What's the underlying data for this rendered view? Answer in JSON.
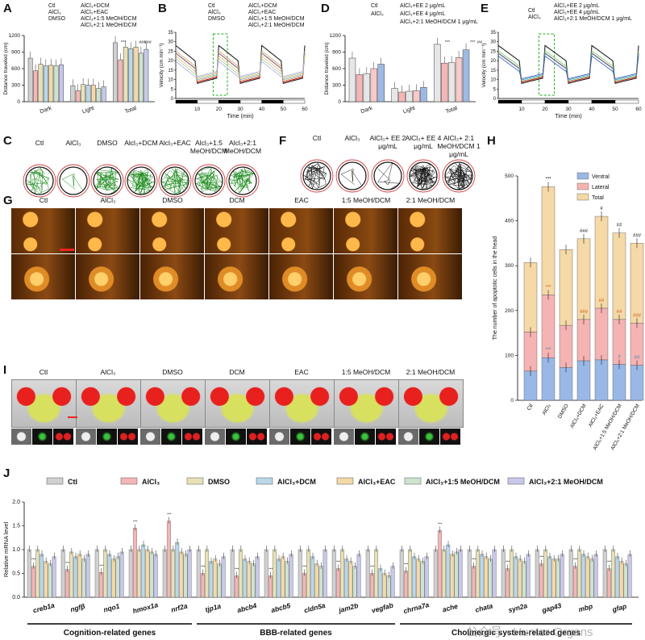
{
  "panel_letters": {
    "A": "A",
    "B": "B",
    "C": "C",
    "D": "D",
    "E": "E",
    "F": "F",
    "G": "G",
    "H": "H",
    "I": "I",
    "J": "J"
  },
  "colors": {
    "ctl": "#d0d0d0",
    "alcl3": "#f4b6b6",
    "dmso": "#e8e1b8",
    "dcm": "#b9d8e8",
    "eac": "#f4d9a8",
    "m15": "#cde3d0",
    "m21": "#c8c8ea",
    "ee2": "#e6e6e6",
    "ee4": "#f7c9c9",
    "mix": "#9db9e4",
    "ventral": "#9ab8e6",
    "lateral": "#f5b3b3",
    "total": "#f5d9a6"
  },
  "panel_A": {
    "legend": [
      "Ctl",
      "AlCl₃",
      "DMSO",
      "AlCl₃+DCM",
      "AlCl₃+EAC",
      "AlCl₃+1:5 MeOH/DCM",
      "AlCl₃+2:1 MeOH/DCM"
    ],
    "ylabel": "Distance traveled (cm)",
    "yticks": [
      "0",
      "300",
      "600",
      "900",
      "1200"
    ],
    "groups": [
      "Dark",
      "Light",
      "Total"
    ],
    "annotations": [
      "***",
      "###",
      "###"
    ]
  },
  "chart_data": [
    {
      "type": "bar",
      "id": "A",
      "title": "",
      "ylabel": "Distance traveled (cm)",
      "ylim": [
        0,
        1200
      ],
      "categories": [
        "Dark",
        "Light",
        "Total"
      ],
      "series": [
        {
          "name": "Ctl",
          "values": [
            790,
            290,
            1070
          ]
        },
        {
          "name": "AlCl₃",
          "values": [
            560,
            200,
            760
          ]
        },
        {
          "name": "DMSO",
          "values": [
            680,
            310,
            990
          ]
        },
        {
          "name": "AlCl₃+DCM",
          "values": [
            650,
            300,
            960
          ]
        },
        {
          "name": "AlCl₃+EAC",
          "values": [
            660,
            300,
            990
          ]
        },
        {
          "name": "AlCl₃+1:5 MeOH/DCM",
          "values": [
            650,
            240,
            880
          ]
        },
        {
          "name": "AlCl₃+2:1 MeOH/DCM",
          "values": [
            670,
            270,
            950
          ]
        }
      ]
    },
    {
      "type": "line",
      "id": "B",
      "xlabel": "Time (min)",
      "ylabel": "Velocity (cm min⁻¹)",
      "xlim": [
        0,
        60
      ],
      "ylim": [
        0,
        35
      ]
    },
    {
      "type": "bar",
      "id": "D",
      "ylabel": "Distance traveled (cm)",
      "ylim": [
        0,
        1200
      ],
      "categories": [
        "Dark",
        "Light",
        "Total"
      ],
      "series": [
        {
          "name": "Ctl",
          "values": [
            790,
            240,
            1040
          ]
        },
        {
          "name": "AlCl₃",
          "values": [
            490,
            175,
            700
          ]
        },
        {
          "name": "AlCl₃+EE 2 μg/mL",
          "values": [
            510,
            190,
            710
          ]
        },
        {
          "name": "AlCl₃+EE 4 μg/mL",
          "values": [
            600,
            200,
            800
          ]
        },
        {
          "name": "AlCl₃+2:1 MeOH/DCM 1 μg/mL",
          "values": [
            680,
            260,
            940
          ]
        }
      ]
    },
    {
      "type": "line",
      "id": "E",
      "xlabel": "Time (min)",
      "ylabel": "Velocity (cm min⁻¹)",
      "xlim": [
        0,
        60
      ],
      "ylim": [
        0,
        35
      ]
    },
    {
      "type": "bar",
      "id": "H",
      "ylabel": "The number of apoptotic cells in the head",
      "ylim": [
        0,
        500
      ],
      "categories": [
        "Ctl",
        "AlCl₃",
        "DMSO",
        "AlCl₃+DCM",
        "AlCl₃+EAC",
        "AlCl₃+1:5 MeOH/DCM",
        "AlCl₃+2:1 MeOH/DCM"
      ],
      "series": [
        {
          "name": "Ventral",
          "values": [
            65,
            95,
            73,
            88,
            90,
            80,
            78
          ]
        },
        {
          "name": "Lateral",
          "values": [
            152,
            235,
            167,
            180,
            205,
            180,
            172
          ]
        },
        {
          "name": "Total",
          "values": [
            307,
            476,
            336,
            360,
            410,
            373,
            350
          ]
        }
      ]
    },
    {
      "type": "bar",
      "id": "J",
      "ylabel": "Relative mRNA level",
      "ylim": [
        0,
        2.0
      ],
      "categories": [
        "creb1a",
        "ngfβ",
        "nqo1",
        "hmox1a",
        "nrf2a",
        "tjp1a",
        "abcb4",
        "abcb5",
        "cldn5a",
        "jam2b",
        "vegfab",
        "chrna7a",
        "ache",
        "chata",
        "syn2a",
        "gap43",
        "mbp",
        "gfap"
      ],
      "series": [
        {
          "name": "Ctl",
          "values": [
            1,
            1,
            1,
            1,
            1,
            1,
            1,
            1,
            1,
            1,
            1,
            1,
            1,
            1,
            1,
            1,
            1,
            1
          ]
        },
        {
          "name": "AlCl₃",
          "values": [
            0.65,
            0.58,
            0.52,
            1.45,
            1.6,
            0.5,
            0.45,
            0.45,
            0.5,
            0.6,
            0.5,
            0.55,
            1.4,
            0.65,
            0.6,
            0.7,
            0.65,
            0.6
          ]
        },
        {
          "name": "DMSO",
          "values": [
            1,
            0.95,
            1,
            1,
            1,
            1,
            1,
            1,
            1,
            1,
            1,
            1,
            1,
            1,
            1,
            1,
            1,
            1
          ]
        },
        {
          "name": "AlCl₃+DCM",
          "values": [
            0.9,
            0.85,
            0.9,
            1.1,
            1.15,
            0.75,
            0.8,
            0.8,
            0.85,
            0.8,
            0.6,
            0.85,
            1.1,
            0.9,
            0.85,
            0.85,
            0.9,
            0.85
          ]
        },
        {
          "name": "AlCl₃+EAC",
          "values": [
            0.75,
            0.9,
            0.8,
            1.0,
            0.95,
            0.8,
            0.75,
            0.85,
            0.7,
            0.75,
            0.5,
            0.8,
            0.9,
            0.85,
            0.8,
            0.8,
            0.85,
            0.75
          ]
        },
        {
          "name": "AlCl₃+1:5 MeOH/DCM",
          "values": [
            0.7,
            0.8,
            0.85,
            0.95,
            0.9,
            0.7,
            0.7,
            0.75,
            0.65,
            0.65,
            0.45,
            0.75,
            0.95,
            0.8,
            0.75,
            0.8,
            0.8,
            0.7
          ]
        },
        {
          "name": "AlCl₃+2:1 MeOH/DCM",
          "values": [
            0.85,
            0.9,
            0.95,
            0.9,
            1.0,
            0.85,
            0.85,
            0.9,
            1.0,
            0.9,
            0.65,
            0.85,
            1.0,
            1.0,
            0.9,
            0.9,
            0.9,
            0.9
          ]
        }
      ]
    }
  ],
  "panel_B": {
    "legend": [
      "Ctl",
      "AlCl₃",
      "DMSO",
      "AlCl₃+DCM",
      "AlCl₃+EAC",
      "AlCl₃+1:5 MeOH/DCM",
      "AlCl₃+2:1 MeOH/DCM"
    ],
    "xlabel": "Time (min)",
    "ylabel": "Velocity (cm min⁻¹)",
    "xticks": [
      "10",
      "20",
      "30",
      "40",
      "50",
      "60"
    ],
    "yticks": [
      "0",
      "5",
      "10",
      "15",
      "20",
      "25",
      "30",
      "35"
    ]
  },
  "panel_C": {
    "labels": [
      "Ctl",
      "AlCl₃",
      "DMSO",
      "Alcl₃+DCM",
      "Alcl₃+EAC",
      "Alcl₃+1:5 MeOH/DCM",
      "Alcl₃+2:1 MeOH/DCM"
    ]
  },
  "panel_D": {
    "legend": [
      "Ctl",
      "AlCl₃",
      "AlCl₃+EE 2 μg/mL",
      "AlCl₃+EE 4 μg/mL",
      "AlCl₃+2:1 MeOH/DCM 1 μg/mL"
    ],
    "ylabel": "Distance traveled (cm)",
    "yticks": [
      "0",
      "300",
      "600",
      "900",
      "1200"
    ],
    "groups": [
      "Dark",
      "Light",
      "Total"
    ],
    "annotations": [
      "***",
      "***",
      "##"
    ]
  },
  "panel_E": {
    "legend": [
      "Ctl",
      "AlCl₃",
      "AlCl₃+EE 2 μg/mL",
      "AlCl₃+EE 4 μg/mL",
      "AlCl₃+2:1 MeOH/DCM 1 μg/mL"
    ],
    "xlabel": "Time (min)",
    "ylabel": "Velocity (cm min⁻¹)",
    "xticks": [
      "10",
      "20",
      "30",
      "40",
      "50",
      "60"
    ],
    "yticks": [
      "0",
      "5",
      "10",
      "15",
      "20",
      "25",
      "30",
      "35"
    ]
  },
  "panel_F": {
    "labels": [
      "Ctl",
      "AlCl₃",
      "AlCl₃+ EE 2 μg/mL",
      "AlCl₃+ EE 4 μg/mL",
      "AlCl₃+ 2:1 MeOH/DCM 1 μg/mL"
    ]
  },
  "panel_G": {
    "labels": [
      "Ctl",
      "AlCl₃",
      "DMSO",
      "DCM",
      "EAC",
      "1:5 MeOH/DCM",
      "2:1 MeOH/DCM"
    ]
  },
  "panel_H": {
    "legend": [
      "Ventral",
      "Lateral",
      "Total"
    ],
    "ylabel": "The number of apoptotic cells in the head",
    "yticks": [
      "0",
      "100",
      "200",
      "300",
      "400",
      "500"
    ],
    "xlabels": [
      "Ctl",
      "AlCl₃",
      "DMSO",
      "AlCl₃+DCM",
      "AlCl₃+EAC",
      "AlCl₃+1:5 MeOH/DCM",
      "AlCl₃+2:1 MeOH/DCM"
    ],
    "total_marks": [
      "",
      "***",
      "",
      "###",
      "#",
      "##",
      "###"
    ],
    "lateral_marks": [
      "",
      "***",
      "",
      "###",
      "##",
      "##",
      "###"
    ],
    "ventral_marks": [
      "",
      "***",
      "",
      "",
      "",
      "#",
      "##"
    ]
  },
  "panel_I": {
    "labels": [
      "Ctl",
      "AlCl₃",
      "DMSO",
      "DCM",
      "EAC",
      "1:5 MeOH/DCM",
      "2:1 MeOH/DCM"
    ]
  },
  "panel_J": {
    "legend": [
      "Ctl",
      "AlCl₃",
      "DMSO",
      "AlCl₃+DCM",
      "AlCl₃+EAC",
      "AlCl₃+1:5 MeOH/DCM",
      "AlCl₃+2:1 MeOH/DCM"
    ],
    "ylabel": "Relative mRNA level",
    "yticks": [
      "0.0",
      "0.5",
      "1.0",
      "1.5",
      "2.0"
    ],
    "genes": [
      "creb1a",
      "ngfβ",
      "nqo1",
      "hmox1a",
      "nrf2a",
      "tjp1a",
      "abcb4",
      "abcb5",
      "cldn5a",
      "jam2b",
      "vegfab",
      "chrna7a",
      "ache",
      "chata",
      "syn2a",
      "gap43",
      "mbp",
      "gfap"
    ],
    "categories": [
      "Cognition-related genes",
      "BBB-related genes",
      "Cholinergic system-related genes"
    ]
  },
  "watermark": "公众号 · Hunter-Organs"
}
